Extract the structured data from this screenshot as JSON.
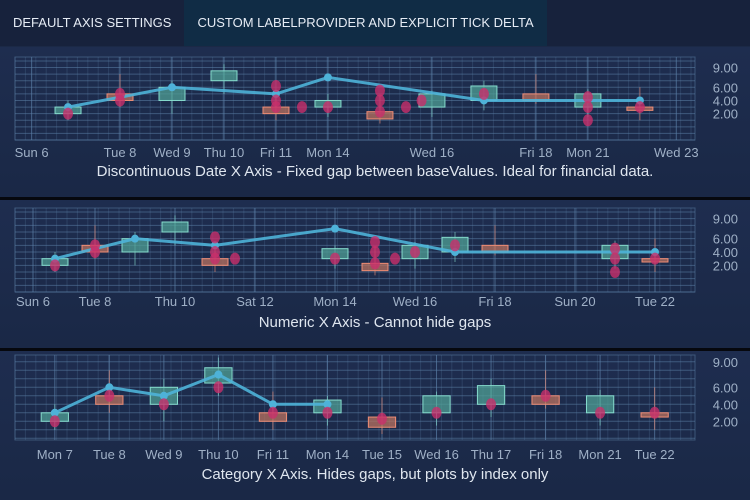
{
  "tabs": [
    {
      "label": "DEFAULT AXIS SETTINGS",
      "active": false
    },
    {
      "label": "CUSTOM LABELPROVIDER AND EXPLICIT TICK DELTA",
      "active": true
    }
  ],
  "colors": {
    "up_fill": "#4f9f94",
    "up_stroke": "#86dccd",
    "down_fill": "#b8715f",
    "down_stroke": "#ef8d75",
    "line": "#4eb2d8",
    "scatter": "#c8306c",
    "grid": "#5b7fa6",
    "label": "#9fb0c6"
  },
  "chart_data": [
    {
      "type": "candlestick+line+scatter",
      "title": "Discontinuous Date X Axis - Fixed gap between baseValues.  Ideal for financial data.",
      "xlim": [
        -1.02,
        12.06
      ],
      "ylim": [
        -2,
        10.6
      ],
      "yticks": [
        {
          "label": "2.00",
          "v": 2
        },
        {
          "label": "4.00",
          "v": 4
        },
        {
          "label": "6.00",
          "v": 6
        },
        {
          "label": "9.00",
          "v": 9
        }
      ],
      "xticks": [
        {
          "label": "Sun 6",
          "x": -0.7
        },
        {
          "label": "Tue 8",
          "x": 1
        },
        {
          "label": "Wed 9",
          "x": 2
        },
        {
          "label": "Thu 10",
          "x": 3
        },
        {
          "label": "Fri 11",
          "x": 4
        },
        {
          "label": "Mon 14",
          "x": 5
        },
        {
          "label": "Wed 16",
          "x": 7
        },
        {
          "label": "Fri 18",
          "x": 9
        },
        {
          "label": "Mon 21",
          "x": 10
        },
        {
          "label": "Wed 23",
          "x": 11.7
        }
      ],
      "candles": [
        {
          "x": 0,
          "o": 2,
          "h": 4,
          "l": 1,
          "c": 3
        },
        {
          "x": 1,
          "o": 5,
          "h": 8,
          "l": 3,
          "c": 4
        },
        {
          "x": 2,
          "o": 4,
          "h": 7,
          "l": 2,
          "c": 6
        },
        {
          "x": 3,
          "o": 7,
          "h": 9.5,
          "l": 5,
          "c": 8.5
        },
        {
          "x": 4,
          "o": 3,
          "h": 5.5,
          "l": 1,
          "c": 2
        },
        {
          "x": 5,
          "o": 3,
          "h": 5,
          "l": 1.5,
          "c": 4
        },
        {
          "x": 6,
          "o": 2.3,
          "h": 4.8,
          "l": 0.5,
          "c": 1.2
        },
        {
          "x": 7,
          "o": 3,
          "h": 5.5,
          "l": 1.5,
          "c": 5
        },
        {
          "x": 8,
          "o": 4,
          "h": 7,
          "l": 2.5,
          "c": 6.2
        },
        {
          "x": 9,
          "o": 5,
          "h": 8,
          "l": 3.5,
          "c": 4
        },
        {
          "x": 10,
          "o": 3,
          "h": 5.7,
          "l": 1.5,
          "c": 5
        },
        {
          "x": 11,
          "o": 3,
          "h": 6,
          "l": 1,
          "c": 2.5
        }
      ],
      "line": [
        {
          "x": 0,
          "y": 3
        },
        {
          "x": 2,
          "y": 6
        },
        {
          "x": 4,
          "y": 5
        },
        {
          "x": 5,
          "y": 7.5
        },
        {
          "x": 8,
          "y": 4
        },
        {
          "x": 11,
          "y": 4
        }
      ],
      "scatter": [
        {
          "x": 0,
          "y": 2
        },
        {
          "x": 1,
          "y": 4
        },
        {
          "x": 1,
          "y": 5
        },
        {
          "x": 4,
          "y": 6.2
        },
        {
          "x": 4,
          "y": 4
        },
        {
          "x": 4,
          "y": 3
        },
        {
          "x": 4.5,
          "y": 3
        },
        {
          "x": 5,
          "y": 3
        },
        {
          "x": 6,
          "y": 5.5
        },
        {
          "x": 6,
          "y": 4
        },
        {
          "x": 6,
          "y": 2.3
        },
        {
          "x": 6.5,
          "y": 3
        },
        {
          "x": 6.8,
          "y": 4
        },
        {
          "x": 8,
          "y": 5
        },
        {
          "x": 10,
          "y": 4.5
        },
        {
          "x": 10,
          "y": 3
        },
        {
          "x": 10,
          "y": 1
        },
        {
          "x": 11,
          "y": 3
        }
      ]
    },
    {
      "type": "candlestick+line+scatter",
      "title": "Numeric X Axis - Cannot hide gaps",
      "xlim": [
        6,
        23
      ],
      "ylim": [
        -2,
        10.6
      ],
      "yticks": [
        {
          "label": "2.00",
          "v": 2
        },
        {
          "label": "4.00",
          "v": 4
        },
        {
          "label": "6.00",
          "v": 6
        },
        {
          "label": "9.00",
          "v": 9
        }
      ],
      "xticks": [
        {
          "label": "Sun 6",
          "x": 6.45
        },
        {
          "label": "Tue 8",
          "x": 8
        },
        {
          "label": "Thu 10",
          "x": 10
        },
        {
          "label": "Sat 12",
          "x": 12
        },
        {
          "label": "Mon 14",
          "x": 14
        },
        {
          "label": "Wed 16",
          "x": 16
        },
        {
          "label": "Fri 18",
          "x": 18
        },
        {
          "label": "Sun 20",
          "x": 20
        },
        {
          "label": "Tue 22",
          "x": 22
        }
      ],
      "candles": [
        {
          "x": 7,
          "o": 2,
          "h": 4,
          "l": 1,
          "c": 3
        },
        {
          "x": 8,
          "o": 5,
          "h": 8,
          "l": 3,
          "c": 4
        },
        {
          "x": 9,
          "o": 4,
          "h": 7,
          "l": 2,
          "c": 6
        },
        {
          "x": 10,
          "o": 7,
          "h": 9.5,
          "l": 5,
          "c": 8.5
        },
        {
          "x": 11,
          "o": 3,
          "h": 5.5,
          "l": 1,
          "c": 2
        },
        {
          "x": 14,
          "o": 3,
          "h": 5,
          "l": 1.5,
          "c": 4.5
        },
        {
          "x": 15,
          "o": 2.3,
          "h": 4.8,
          "l": 0.5,
          "c": 1.2
        },
        {
          "x": 16,
          "o": 3,
          "h": 5.5,
          "l": 1.5,
          "c": 5
        },
        {
          "x": 17,
          "o": 4,
          "h": 7,
          "l": 2.5,
          "c": 6.2
        },
        {
          "x": 18,
          "o": 5,
          "h": 8,
          "l": 3.5,
          "c": 4
        },
        {
          "x": 21,
          "o": 3,
          "h": 5.7,
          "l": 1.5,
          "c": 5
        },
        {
          "x": 22,
          "o": 3,
          "h": 6,
          "l": 1,
          "c": 2.5
        }
      ],
      "line": [
        {
          "x": 7,
          "y": 3
        },
        {
          "x": 9,
          "y": 6
        },
        {
          "x": 11,
          "y": 5
        },
        {
          "x": 14,
          "y": 7.5
        },
        {
          "x": 17,
          "y": 4
        },
        {
          "x": 22,
          "y": 4
        }
      ],
      "scatter": [
        {
          "x": 7,
          "y": 2
        },
        {
          "x": 8,
          "y": 4
        },
        {
          "x": 8,
          "y": 5
        },
        {
          "x": 11,
          "y": 6.2
        },
        {
          "x": 11,
          "y": 4
        },
        {
          "x": 11,
          "y": 3
        },
        {
          "x": 11.5,
          "y": 3
        },
        {
          "x": 14,
          "y": 3
        },
        {
          "x": 15,
          "y": 5.5
        },
        {
          "x": 15,
          "y": 4
        },
        {
          "x": 15,
          "y": 2.3
        },
        {
          "x": 15.5,
          "y": 3
        },
        {
          "x": 16,
          "y": 4
        },
        {
          "x": 17,
          "y": 5
        },
        {
          "x": 21,
          "y": 4.5
        },
        {
          "x": 21,
          "y": 3
        },
        {
          "x": 21,
          "y": 1
        },
        {
          "x": 22,
          "y": 3
        }
      ]
    },
    {
      "type": "candlestick+line+scatter",
      "title": "Category X Axis.  Hides gaps, but plots by index only",
      "xlim": [
        -0.73,
        11.74
      ],
      "ylim": [
        -0.2,
        9.8
      ],
      "yticks": [
        {
          "label": "2.00",
          "v": 2
        },
        {
          "label": "4.00",
          "v": 4
        },
        {
          "label": "6.00",
          "v": 6
        },
        {
          "label": "9.00",
          "v": 9
        }
      ],
      "xticks": [
        {
          "label": "Mon 7",
          "x": 0
        },
        {
          "label": "Tue 8",
          "x": 1
        },
        {
          "label": "Wed 9",
          "x": 2
        },
        {
          "label": "Thu 10",
          "x": 3
        },
        {
          "label": "Fri 11",
          "x": 4
        },
        {
          "label": "Mon 14",
          "x": 5
        },
        {
          "label": "Tue 15",
          "x": 6
        },
        {
          "label": "Wed 16",
          "x": 7
        },
        {
          "label": "Thu 17",
          "x": 8
        },
        {
          "label": "Fri 18",
          "x": 9
        },
        {
          "label": "Mon 21",
          "x": 10
        },
        {
          "label": "Tue 22",
          "x": 11
        }
      ],
      "candles": [
        {
          "x": 0,
          "o": 2,
          "h": 4,
          "l": 1,
          "c": 3
        },
        {
          "x": 1,
          "o": 5,
          "h": 8,
          "l": 3,
          "c": 4
        },
        {
          "x": 2,
          "o": 4,
          "h": 7,
          "l": 2,
          "c": 6
        },
        {
          "x": 3,
          "o": 6.5,
          "h": 9.5,
          "l": 5,
          "c": 8.3
        },
        {
          "x": 4,
          "o": 3,
          "h": 5.5,
          "l": 1,
          "c": 2
        },
        {
          "x": 5,
          "o": 3,
          "h": 5,
          "l": 1.5,
          "c": 4.5
        },
        {
          "x": 6,
          "o": 2.5,
          "h": 4.8,
          "l": 0.5,
          "c": 1.3
        },
        {
          "x": 7,
          "o": 3,
          "h": 5.5,
          "l": 1.5,
          "c": 5
        },
        {
          "x": 8,
          "o": 4,
          "h": 7,
          "l": 2.5,
          "c": 6.2
        },
        {
          "x": 9,
          "o": 5,
          "h": 8,
          "l": 3.5,
          "c": 4
        },
        {
          "x": 10,
          "o": 3,
          "h": 5.7,
          "l": 1.5,
          "c": 5
        },
        {
          "x": 11,
          "o": 3,
          "h": 6,
          "l": 1,
          "c": 2.5
        }
      ],
      "line": [
        {
          "x": 0,
          "y": 3
        },
        {
          "x": 1,
          "y": 6
        },
        {
          "x": 2,
          "y": 5
        },
        {
          "x": 3,
          "y": 7.5
        },
        {
          "x": 4,
          "y": 4
        },
        {
          "x": 5,
          "y": 4
        }
      ],
      "scatter": [
        {
          "x": 0,
          "y": 2
        },
        {
          "x": 1,
          "y": 5
        },
        {
          "x": 2,
          "y": 4
        },
        {
          "x": 3,
          "y": 6
        },
        {
          "x": 4,
          "y": 3
        },
        {
          "x": 5,
          "y": 3
        },
        {
          "x": 6,
          "y": 2.3
        },
        {
          "x": 7,
          "y": 3
        },
        {
          "x": 8,
          "y": 4
        },
        {
          "x": 9,
          "y": 5
        },
        {
          "x": 10,
          "y": 3
        },
        {
          "x": 11,
          "y": 3
        }
      ]
    }
  ]
}
